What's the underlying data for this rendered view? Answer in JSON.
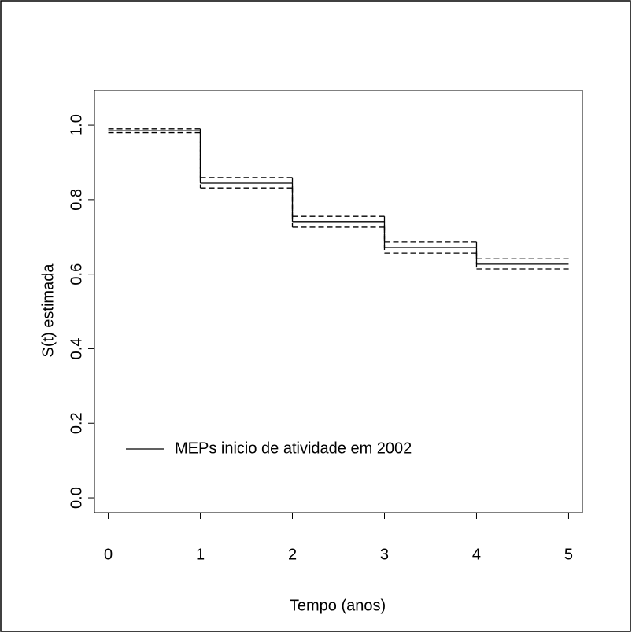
{
  "chart_data": {
    "type": "step",
    "x_label": "Tempo (anos)",
    "y_label": "S(t) estimada",
    "x": [
      0,
      1,
      2,
      3,
      4,
      5
    ],
    "series": [
      {
        "name": "MEPs inicio de atividade em 2002",
        "color": "#000000",
        "values": [
          0.985,
          0.844,
          0.741,
          0.671,
          0.627,
          0.627
        ]
      }
    ],
    "ci_upper": [
      0.99,
      0.859,
      0.755,
      0.686,
      0.641,
      0.641
    ],
    "ci_lower": [
      0.98,
      0.831,
      0.726,
      0.656,
      0.614,
      0.614
    ],
    "xlim": [
      -0.15,
      5.15
    ],
    "ylim": [
      -0.04,
      1.093
    ],
    "xticks": [
      0,
      1,
      2,
      3,
      4,
      5
    ],
    "yticks": [
      {
        "value": 0,
        "label": "0.0"
      },
      0.2,
      0.4,
      0.6,
      0.8,
      {
        "value": 1,
        "label": "1.0"
      }
    ],
    "legend": "bottom-left"
  }
}
